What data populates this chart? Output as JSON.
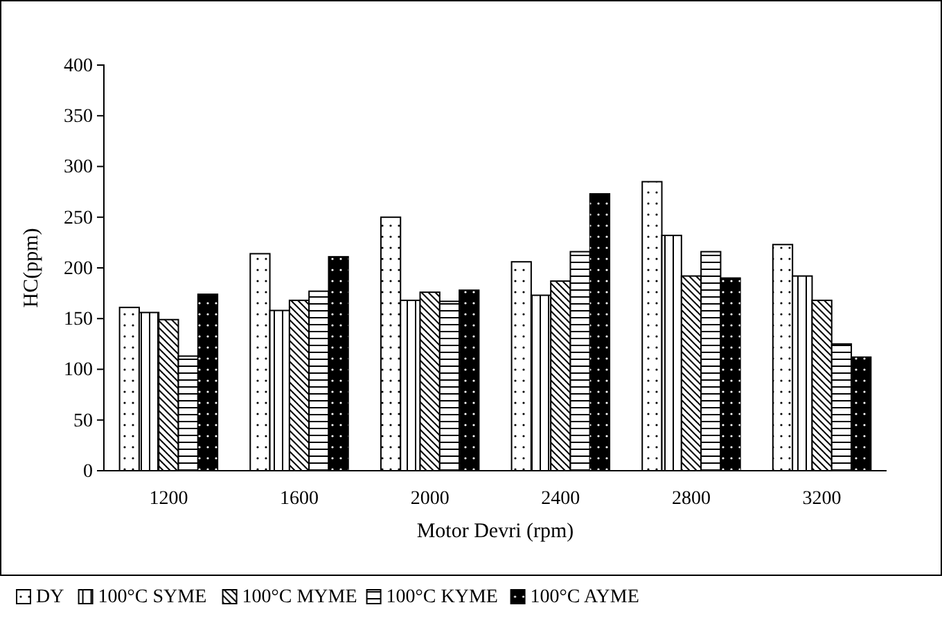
{
  "chart_data": {
    "type": "bar",
    "xlabel": "Motor Devri (rpm)",
    "ylabel": "HC(ppm)",
    "categories": [
      "1200",
      "1600",
      "2000",
      "2400",
      "2800",
      "3200"
    ],
    "series": [
      {
        "name": "DY",
        "color": "#ffffff",
        "values": [
          161,
          214,
          250,
          206,
          285,
          223
        ]
      },
      {
        "name": "100°C SYME",
        "color": "#ffffff",
        "values": [
          156,
          158,
          168,
          173,
          232,
          192
        ]
      },
      {
        "name": "100°C MYME",
        "color": "#ffffff",
        "values": [
          149,
          168,
          176,
          187,
          192,
          168
        ]
      },
      {
        "name": "100°C KYME",
        "color": "#ffffff",
        "values": [
          113,
          177,
          167,
          216,
          216,
          125
        ]
      },
      {
        "name": "100°C AYME",
        "color": "#000000",
        "values": [
          174,
          211,
          178,
          273,
          190,
          112
        ]
      }
    ],
    "ylim": [
      0,
      400
    ],
    "yticks": [
      0,
      50,
      100,
      150,
      200,
      250,
      300,
      350,
      400
    ],
    "grid": false,
    "legend": "bottom"
  }
}
